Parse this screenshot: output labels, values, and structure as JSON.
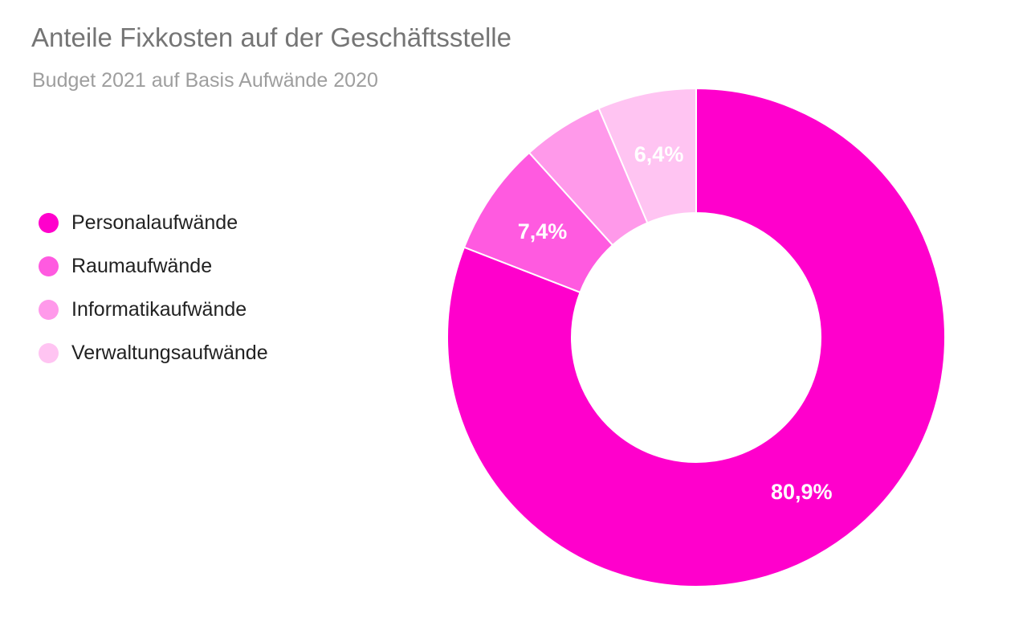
{
  "chart_data": {
    "type": "pie",
    "variant": "donut",
    "title": "Anteile Fixkosten auf der Geschäftsstelle",
    "subtitle": "Budget 2021 auf Basis Aufwände 2020",
    "legend_position": "left",
    "categories": [
      "Personalaufwände",
      "Raumaufwände",
      "Informatikaufwände",
      "Verwaltungsaufwände"
    ],
    "values": [
      80.9,
      7.4,
      5.3,
      6.4
    ],
    "data_labels": [
      "80,9%",
      "7,4%",
      "",
      "6,4%"
    ],
    "colors": [
      "#ff00cc",
      "#ff5ae0",
      "#ff99ea",
      "#ffc4f2"
    ]
  }
}
